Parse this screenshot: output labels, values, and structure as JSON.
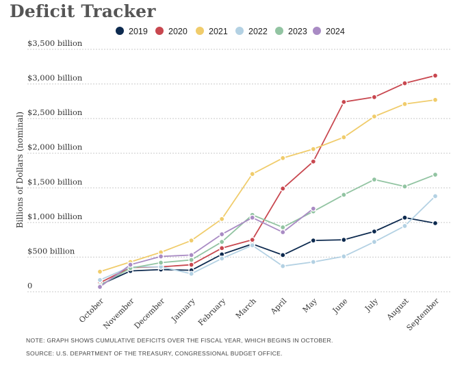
{
  "title": "Deficit Tracker",
  "notes": [
    "NOTE: GRAPH SHOWS CUMULATIVE DEFICITS OVER THE FISCAL YEAR, WHICH BEGINS IN OCTOBER.",
    "SOURCE: U.S. DEPARTMENT OF THE TREASURY, CONGRESSIONAL BUDGET OFFICE."
  ],
  "chart_data": {
    "type": "line",
    "title": "Deficit Tracker",
    "ylabel": "Billions of Dollars (nominal)",
    "xlabel": "",
    "ylim": [
      0,
      3500
    ],
    "yticks": [
      0,
      500,
      1000,
      1500,
      2000,
      2500,
      3000,
      3500
    ],
    "ytick_labels": [
      "0",
      "$500 billion",
      "$1,000 billion",
      "$1,500 billion",
      "$2,000 billion",
      "$2,500 billion",
      "$3,000 billion",
      "$3,500 billion"
    ],
    "grid": "horizontal dashed",
    "legend_position": "top",
    "categories": [
      "October",
      "November",
      "December",
      "January",
      "February",
      "March",
      "April",
      "May",
      "June",
      "July",
      "August",
      "September"
    ],
    "series": [
      {
        "name": "2019",
        "color": "#0d2a4f",
        "values": [
          100,
          300,
          320,
          310,
          540,
          690,
          530,
          740,
          750,
          870,
          1070,
          990
        ]
      },
      {
        "name": "2020",
        "color": "#c8474f",
        "values": [
          130,
          350,
          360,
          390,
          630,
          750,
          1490,
          1880,
          2740,
          2810,
          3010,
          3120
        ]
      },
      {
        "name": "2021",
        "color": "#f0cc6b",
        "values": [
          290,
          430,
          570,
          740,
          1050,
          1700,
          1930,
          2060,
          2230,
          2530,
          2710,
          2770
        ]
      },
      {
        "name": "2022",
        "color": "#b3d1e3",
        "values": [
          170,
          360,
          360,
          260,
          480,
          670,
          370,
          430,
          510,
          720,
          950,
          1380
        ]
      },
      {
        "name": "2023",
        "color": "#92c4a2",
        "values": [
          90,
          340,
          420,
          460,
          720,
          1110,
          930,
          1160,
          1400,
          1620,
          1520,
          1690
        ]
      },
      {
        "name": "2024",
        "color": "#a98bc4",
        "values": [
          70,
          390,
          510,
          530,
          830,
          1070,
          860,
          1200,
          null,
          null,
          null,
          null
        ]
      }
    ]
  }
}
